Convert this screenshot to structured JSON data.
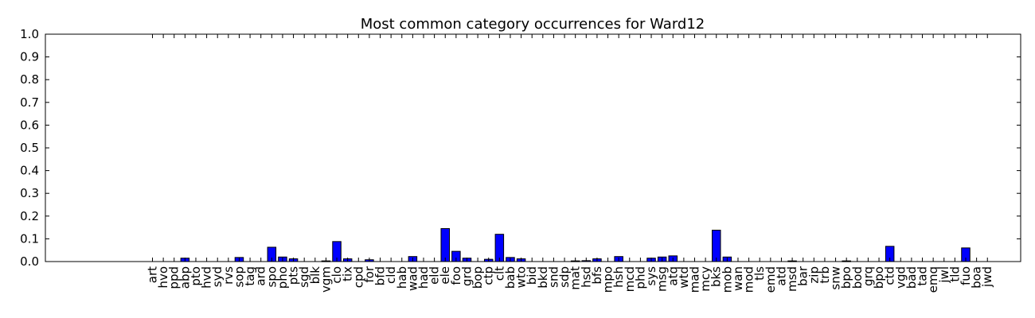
{
  "chart_data": {
    "type": "bar",
    "title": "Most common category occurrences for Ward12",
    "xlabel": "",
    "ylabel": "",
    "ylim": [
      0,
      1.0
    ],
    "yticks": [
      "0.0",
      "0.1",
      "0.2",
      "0.3",
      "0.4",
      "0.5",
      "0.6",
      "0.7",
      "0.8",
      "0.9",
      "1.0"
    ],
    "grid": false,
    "bar_color": "#0000ff",
    "categories": [
      "art",
      "hvo",
      "ppd",
      "abp",
      "pto",
      "hvd",
      "syd",
      "rvs",
      "sop",
      "tag",
      "ard",
      "spo",
      "pho",
      "pts",
      "sgd",
      "blk",
      "vgm",
      "clo",
      "tix",
      "cpd",
      "for",
      "bfd",
      "cld",
      "hab",
      "wad",
      "had",
      "eld",
      "ele",
      "foo",
      "grd",
      "bop",
      "ctp",
      "clt",
      "bab",
      "wto",
      "bid",
      "bkd",
      "snd",
      "sdp",
      "mat",
      "hsd",
      "bfs",
      "mpo",
      "hsh",
      "mcd",
      "phd",
      "sys",
      "msg",
      "atq",
      "wtd",
      "mad",
      "mcy",
      "bks",
      "mob",
      "wan",
      "mod",
      "tls",
      "emd",
      "atd",
      "msd",
      "bar",
      "zip",
      "trb",
      "snw",
      "bpo",
      "bod",
      "grq",
      "bpo",
      "ctd",
      "vgd",
      "bad",
      "tad",
      "emq",
      "jwl",
      "tld",
      "fuo",
      "boa",
      "jwd"
    ],
    "values": [
      0,
      0,
      0,
      0.015,
      0,
      0,
      0,
      0,
      0.018,
      0,
      0,
      0.063,
      0.02,
      0.012,
      0,
      0,
      0.003,
      0.088,
      0.012,
      0,
      0.008,
      0,
      0,
      0,
      0.022,
      0,
      0,
      0.145,
      0.045,
      0.015,
      0,
      0.01,
      0.12,
      0.018,
      0.012,
      0,
      0,
      0,
      0,
      0.003,
      0.004,
      0.012,
      0,
      0.022,
      0,
      0,
      0.015,
      0.02,
      0.025,
      0,
      0,
      0,
      0.138,
      0.02,
      0,
      0,
      0,
      0,
      0,
      0.003,
      0,
      0,
      0,
      0,
      0.003,
      0,
      0,
      0,
      0.067,
      0,
      0,
      0,
      0,
      0,
      0,
      0.06,
      0,
      0
    ]
  }
}
